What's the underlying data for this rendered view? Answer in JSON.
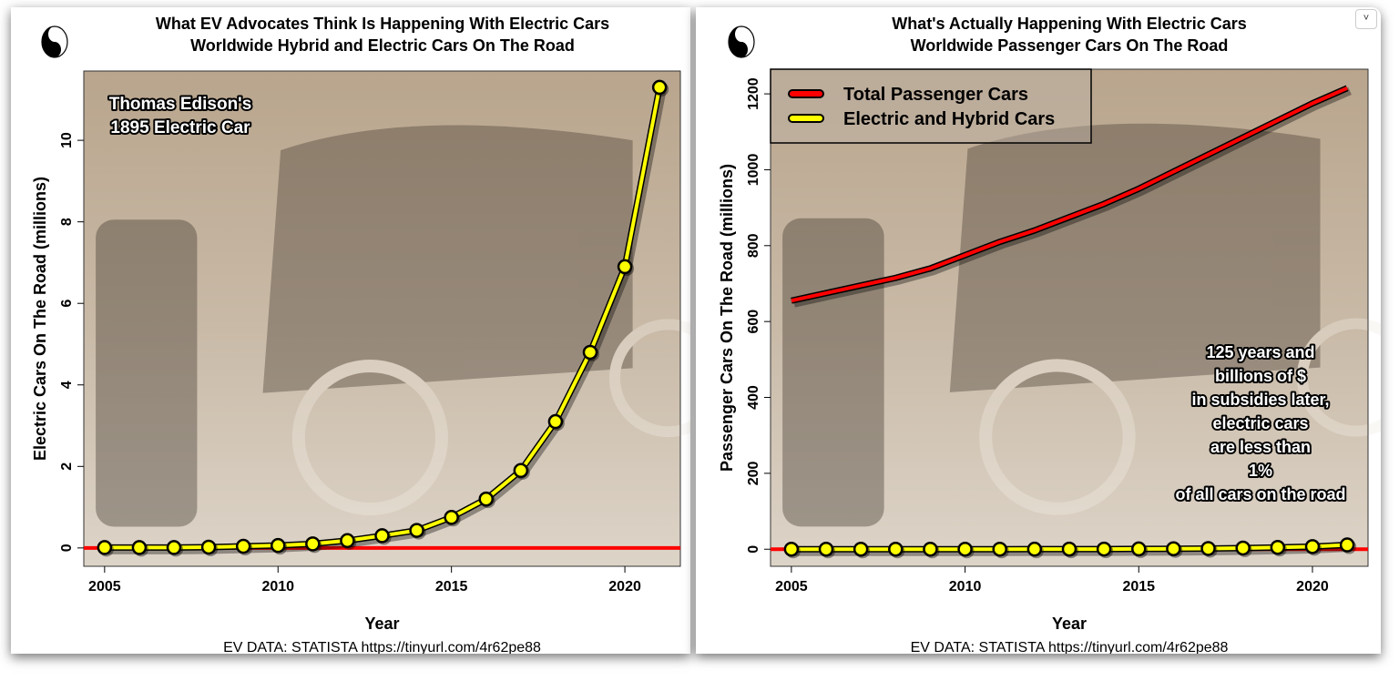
{
  "chart_data": [
    {
      "type": "line",
      "title": "What EV Advocates Think Is Happening With Electric Cars",
      "subtitle": "Worldwide Hybrid and Electric Cars On The Road",
      "xlabel": "Year",
      "ylabel": "Electric Cars On The Road (millions)",
      "source": "EV DATA: STATISTA https://tinyurl.com/4r62pe88",
      "annotation": [
        "Thomas Edison's",
        "1895 Electric Car"
      ],
      "x": [
        2005,
        2006,
        2007,
        2008,
        2009,
        2010,
        2011,
        2012,
        2013,
        2014,
        2015,
        2016,
        2017,
        2018,
        2019,
        2020,
        2021
      ],
      "series": [
        {
          "name": "Electric and Hybrid Cars",
          "color": "#ffff00",
          "values": [
            0.01,
            0.01,
            0.01,
            0.02,
            0.04,
            0.06,
            0.1,
            0.18,
            0.3,
            0.43,
            0.75,
            1.2,
            1.9,
            3.1,
            4.8,
            6.9,
            11.3
          ]
        }
      ],
      "reference_line": {
        "y": 0,
        "color": "#ff0000"
      },
      "xticks": [
        2005,
        2010,
        2015,
        2020
      ],
      "yticks": [
        0,
        2,
        4,
        6,
        8,
        10
      ],
      "xlim": [
        2004.4,
        2021.6
      ],
      "ylim": [
        -0.45,
        11.7
      ],
      "grid": false
    },
    {
      "type": "line",
      "title": "What's Actually Happening With Electric Cars",
      "subtitle": "Worldwide Passenger Cars On The Road",
      "xlabel": "Year",
      "ylabel": "Passenger Cars On The Road (millions)",
      "source": "EV DATA: STATISTA https://tinyurl.com/4r62pe88",
      "annotation": [
        "125 years and",
        "billions of $",
        "in subsidies later,",
        "electric cars",
        "are less than",
        "1%",
        "of all cars on the road"
      ],
      "legend_position": "top-left",
      "x": [
        2005,
        2006,
        2007,
        2008,
        2009,
        2010,
        2011,
        2012,
        2013,
        2014,
        2015,
        2016,
        2017,
        2018,
        2019,
        2020,
        2021
      ],
      "series": [
        {
          "name": "Total Passenger Cars",
          "color": "#ff0000",
          "values": [
            655,
            675,
            695,
            715,
            740,
            775,
            810,
            840,
            875,
            910,
            950,
            995,
            1040,
            1085,
            1130,
            1175,
            1215
          ]
        },
        {
          "name": "Electric and Hybrid Cars",
          "color": "#ffff00",
          "values": [
            0.01,
            0.01,
            0.01,
            0.02,
            0.04,
            0.06,
            0.1,
            0.18,
            0.3,
            0.43,
            0.75,
            1.2,
            1.9,
            3.1,
            4.8,
            6.9,
            11.3
          ]
        }
      ],
      "reference_line": {
        "y": 0,
        "color": "#ff0000"
      },
      "xticks": [
        2005,
        2010,
        2015,
        2020
      ],
      "yticks": [
        0,
        200,
        400,
        600,
        800,
        1000,
        1200
      ],
      "xlim": [
        2004.4,
        2021.6
      ],
      "ylim": [
        -45,
        1265
      ],
      "grid": false
    }
  ],
  "menu_icon": "chevron-down-icon",
  "menu_glyph": "˅"
}
